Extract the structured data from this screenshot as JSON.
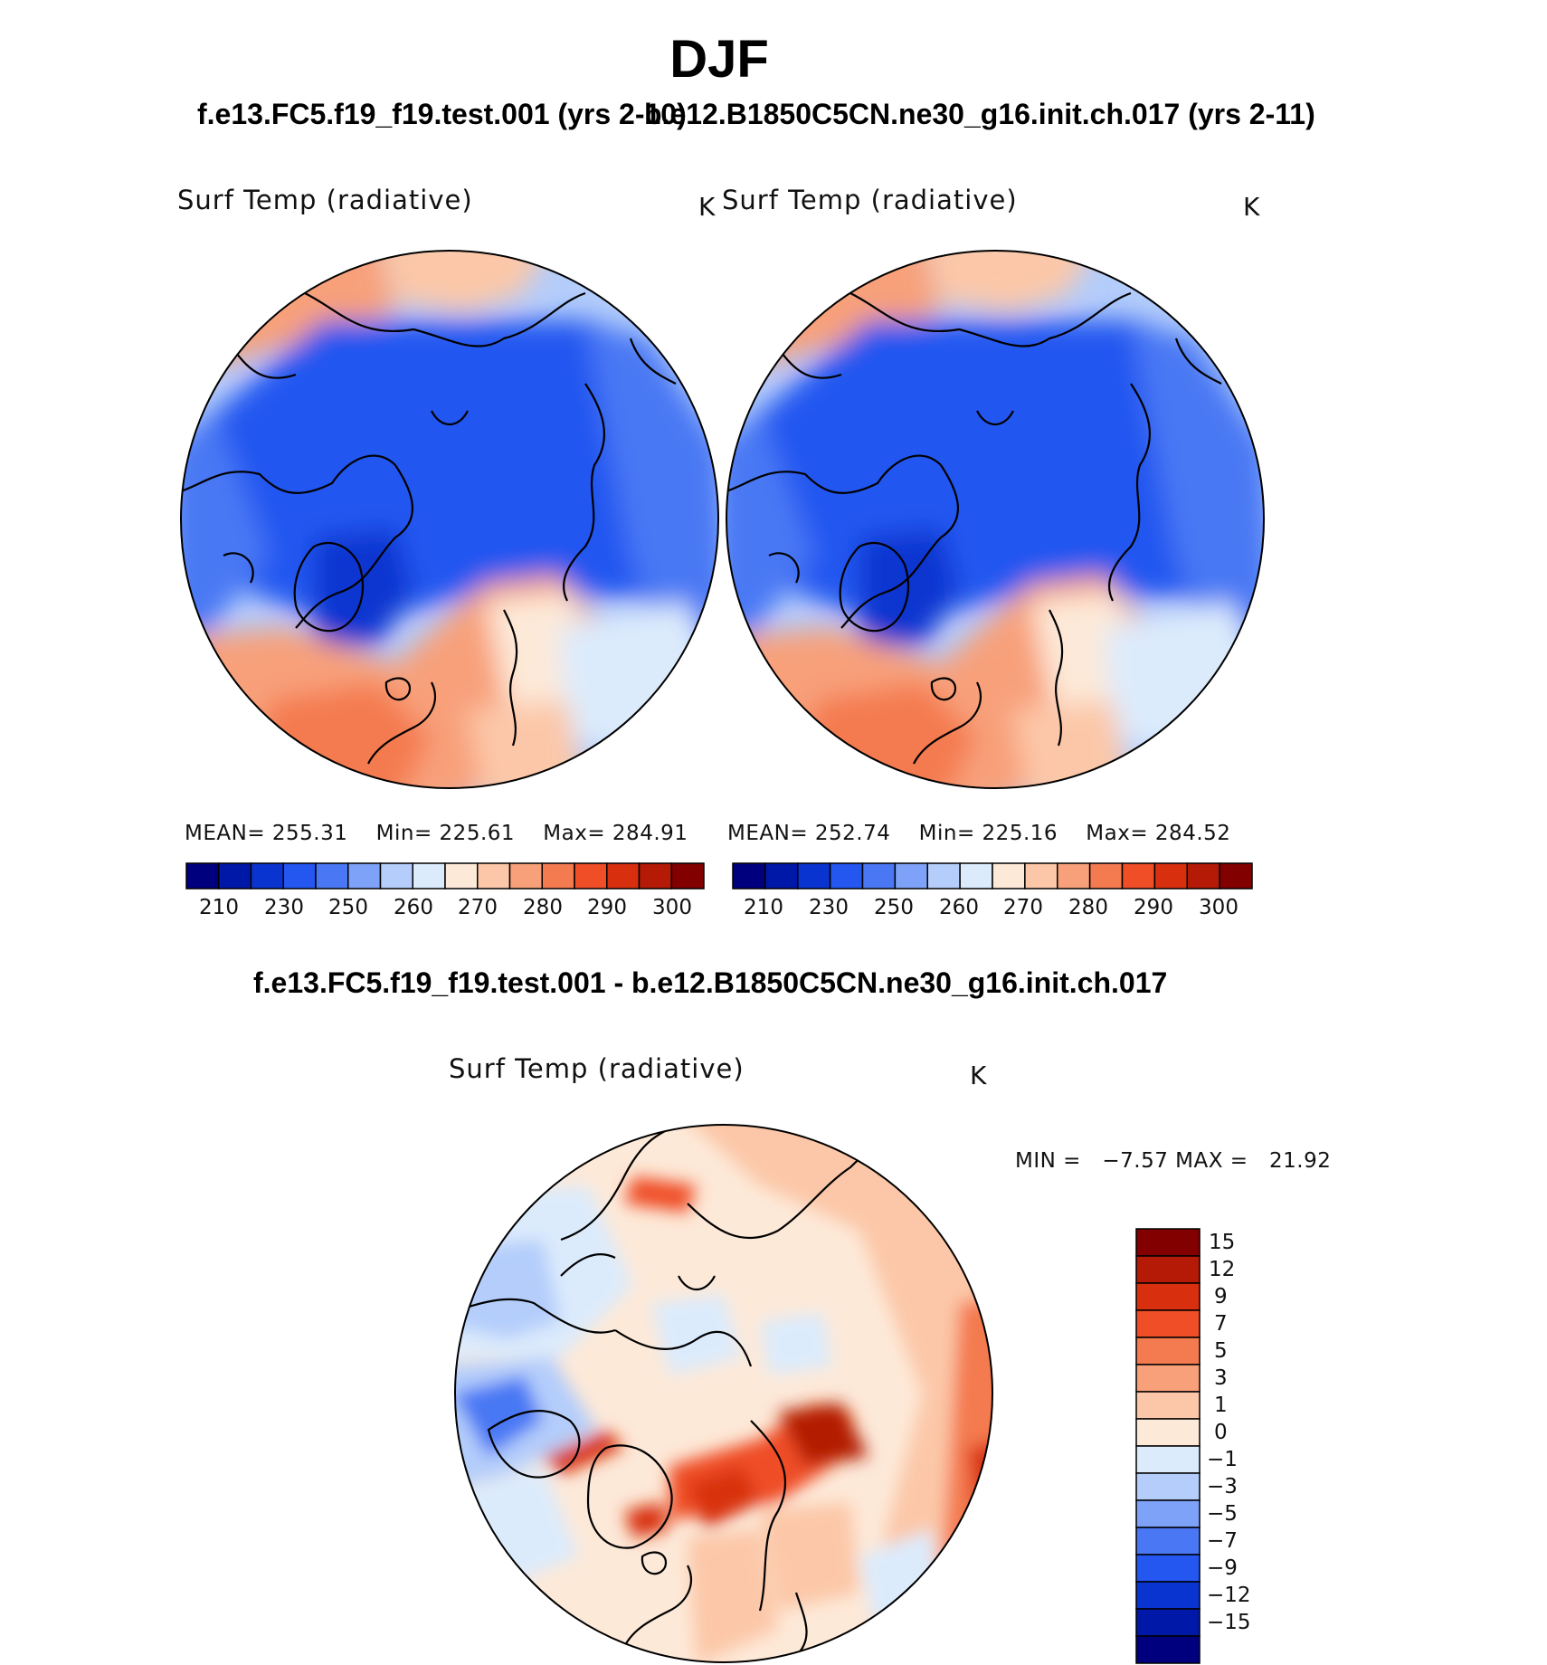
{
  "figure": {
    "season": "DJF",
    "test_title": "f.e13.FC5.f19_f19.test.001 (yrs 2-10)",
    "control_title": "b.e12.B1850C5CN.ne30_g16.init.ch.017 (yrs 2-11)",
    "diff_title": "f.e13.FC5.f19_f19.test.001 - b.e12.B1850C5CN.ne30_g16.init.ch.017"
  },
  "panels": [
    {
      "variable": "Surf Temp (radiative)",
      "units": "K",
      "stats": {
        "mean_label": "MEAN=",
        "mean": "255.31",
        "min_label": "Min=",
        "min": "225.61",
        "max_label": "Max=",
        "max": "284.91"
      }
    },
    {
      "variable": "Surf Temp (radiative)",
      "units": "K",
      "stats": {
        "mean_label": "MEAN=",
        "mean": "252.74",
        "min_label": "Min=",
        "min": "225.16",
        "max_label": "Max=",
        "max": "284.52"
      }
    }
  ],
  "abs_colorbar": {
    "labels": [
      "210",
      "230",
      "250",
      "260",
      "270",
      "280",
      "290",
      "300"
    ],
    "colors": [
      "#00007f",
      "#0018a8",
      "#0a34d0",
      "#2456f0",
      "#4a78f4",
      "#7ea2f8",
      "#b4cdfb",
      "#dcebfc",
      "#fde9d8",
      "#fcc7a8",
      "#f8a07a",
      "#f47a50",
      "#ef4e26",
      "#d8300e",
      "#b41a06",
      "#820000"
    ]
  },
  "diff_panel": {
    "variable": "Surf Temp (radiative)",
    "units": "K",
    "min_label": "MIN =",
    "min": "−7.57",
    "max_label": "MAX =",
    "max": "21.92"
  },
  "diff_colorbar": {
    "labels": [
      "15",
      "12",
      "9",
      "7",
      "5",
      "3",
      "1",
      "0",
      "−1",
      "−3",
      "−5",
      "−7",
      "−9",
      "−12",
      "−15"
    ],
    "colors": [
      "#820000",
      "#b41a06",
      "#d8300e",
      "#ef4e26",
      "#f47a50",
      "#f8a07a",
      "#fcc7a8",
      "#fde9d8",
      "#dcebfc",
      "#b4cdfb",
      "#7ea2f8",
      "#4a78f4",
      "#2456f0",
      "#0a34d0",
      "#0018a8",
      "#00007f"
    ]
  }
}
